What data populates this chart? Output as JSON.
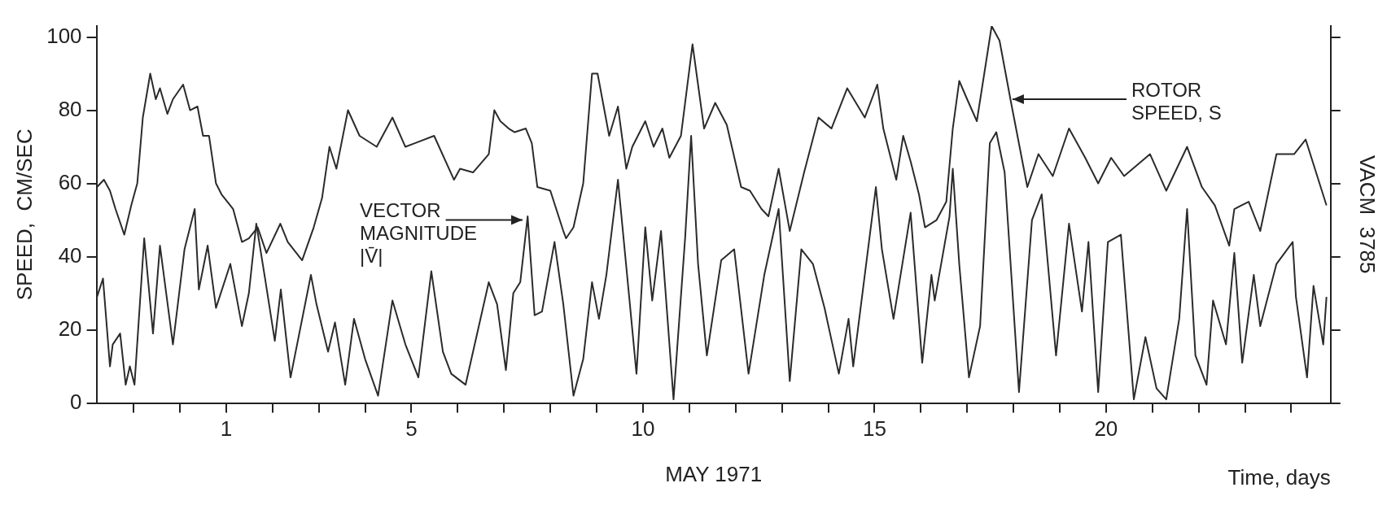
{
  "chart_data": {
    "type": "line",
    "xlabel": "MAY 1971",
    "ylabel": "SPEED,  CM/SEC",
    "y2label": "VACM  3785",
    "xlim": [
      -1.8,
      24.85
    ],
    "xticks": [
      {
        "value": -1,
        "label": null
      },
      {
        "value": 0,
        "label": null
      },
      1,
      {
        "value": 2,
        "label": null
      },
      {
        "value": 3,
        "label": null
      },
      {
        "value": 4,
        "label": null
      },
      5,
      {
        "value": 6,
        "label": null
      },
      {
        "value": 7,
        "label": null
      },
      {
        "value": 8,
        "label": null
      },
      {
        "value": 9,
        "label": null
      },
      10,
      {
        "value": 11,
        "label": null
      },
      {
        "value": 12,
        "label": null
      },
      {
        "value": 13,
        "label": null
      },
      {
        "value": 14,
        "label": null
      },
      15,
      {
        "value": 16,
        "label": null
      },
      {
        "value": 17,
        "label": null
      },
      {
        "value": 18,
        "label": null
      },
      {
        "value": 19,
        "label": null
      },
      20,
      {
        "value": 21,
        "label": null
      },
      {
        "value": 22,
        "label": null
      },
      {
        "value": 23,
        "label": null
      },
      {
        "value": 24,
        "label": null
      }
    ],
    "ylim": [
      0,
      103
    ],
    "yticks": [
      0,
      20,
      40,
      60,
      80,
      100
    ],
    "grid": false,
    "legend": false,
    "series": [
      {
        "color": "#2b2b2b",
        "x": [
          -1.79,
          -1.64,
          -1.51,
          -1.39,
          -1.2,
          -1.05,
          -0.92,
          -0.8,
          -0.64,
          -0.52,
          -0.43,
          -0.27,
          -0.15,
          0.07,
          0.22,
          0.38,
          0.5,
          0.63,
          0.78,
          0.9,
          1.15,
          1.34,
          1.49,
          1.68,
          1.87,
          2.17,
          2.33,
          2.64,
          2.89,
          3.07,
          3.23,
          3.38,
          3.63,
          3.88,
          4.25,
          4.59,
          4.87,
          5.49,
          5.92,
          6.05,
          6.33,
          6.67,
          6.79,
          6.92,
          7.1,
          7.23,
          7.47,
          7.6,
          7.72,
          8.0,
          8.28,
          8.34,
          8.5,
          8.71,
          8.9,
          9.02,
          9.27,
          9.46,
          9.64,
          9.77,
          10.05,
          10.23,
          10.42,
          10.57,
          10.82,
          11.07,
          11.32,
          11.56,
          11.81,
          12.12,
          12.31,
          12.56,
          12.71,
          12.93,
          13.17,
          13.48,
          13.79,
          14.07,
          14.41,
          14.79,
          15.06,
          15.19,
          15.47,
          15.62,
          15.78,
          15.96,
          16.09,
          16.34,
          16.55,
          16.69,
          16.83,
          17.0,
          17.21,
          17.53,
          17.7,
          17.95,
          18.3,
          18.54,
          18.85,
          19.2,
          19.55,
          19.83,
          20.11,
          20.39,
          20.95,
          21.3,
          21.75,
          22.07,
          22.35,
          22.66,
          22.77,
          23.08,
          23.33,
          23.68,
          24.06,
          24.31,
          24.76
        ],
        "values": [
          59,
          61,
          58,
          53,
          46,
          54,
          60,
          78,
          90,
          83,
          86,
          79,
          83,
          87,
          80,
          81,
          73,
          73,
          60,
          57,
          53,
          44,
          45,
          48,
          41,
          49,
          44,
          39,
          48,
          56,
          70,
          64,
          80,
          73,
          70,
          78,
          70,
          73,
          61,
          64,
          63,
          68,
          80,
          77,
          75,
          74,
          75,
          71,
          59,
          58,
          47,
          45,
          48,
          60,
          90,
          90,
          73,
          81,
          64,
          70,
          77,
          70,
          75,
          67,
          73,
          98,
          75,
          82,
          76,
          59,
          58,
          53,
          51,
          64,
          47,
          63,
          78,
          75,
          86,
          78,
          87,
          75,
          61,
          73,
          66,
          57,
          48,
          50,
          55,
          75,
          88,
          83,
          77,
          103,
          99,
          82,
          59,
          68,
          62,
          75,
          67,
          60,
          67,
          62,
          68,
          58,
          70,
          59,
          54,
          43,
          53,
          55,
          47,
          68,
          68,
          72,
          54
        ]
      },
      {
        "color": "#2b2b2b",
        "x": [
          -1.79,
          -1.66,
          -1.51,
          -1.45,
          -1.29,
          -1.17,
          -1.08,
          -0.98,
          -0.77,
          -0.58,
          -0.43,
          -0.15,
          0.1,
          0.32,
          0.41,
          0.6,
          0.78,
          1.09,
          1.34,
          1.49,
          1.65,
          1.84,
          2.05,
          2.18,
          2.39,
          2.83,
          2.95,
          3.2,
          3.35,
          3.57,
          3.76,
          4.0,
          4.28,
          4.59,
          4.87,
          5.15,
          5.43,
          5.68,
          5.86,
          6.17,
          6.67,
          6.85,
          7.04,
          7.2,
          7.35,
          7.51,
          7.66,
          7.82,
          8.09,
          8.28,
          8.5,
          8.71,
          8.9,
          9.05,
          9.21,
          9.46,
          9.71,
          9.86,
          10.05,
          10.2,
          10.39,
          10.66,
          10.91,
          11.04,
          11.19,
          11.38,
          11.69,
          11.97,
          12.28,
          12.62,
          12.93,
          13.17,
          13.42,
          13.67,
          13.92,
          14.23,
          14.44,
          14.54,
          14.91,
          15.03,
          15.16,
          15.41,
          15.78,
          16.03,
          16.23,
          16.3,
          16.62,
          16.69,
          16.83,
          17.04,
          17.28,
          17.49,
          17.63,
          17.81,
          18.12,
          18.4,
          18.61,
          18.92,
          19.2,
          19.48,
          19.62,
          19.83,
          20.04,
          20.32,
          20.6,
          20.85,
          21.09,
          21.3,
          21.58,
          21.75,
          21.93,
          22.17,
          22.31,
          22.59,
          22.77,
          22.94,
          23.19,
          23.33,
          23.68,
          24.03,
          24.1,
          24.34,
          24.48,
          24.69,
          24.76
        ],
        "values": [
          29,
          34,
          10,
          16,
          19,
          5,
          10,
          5,
          45,
          19,
          43,
          16,
          42,
          53,
          31,
          43,
          26,
          38,
          21,
          30,
          49,
          34,
          17,
          31,
          7,
          35,
          27,
          14,
          22,
          5,
          23,
          12,
          2,
          28,
          16,
          7,
          36,
          14,
          8,
          5,
          33,
          27,
          9,
          30,
          33,
          51,
          24,
          25,
          44,
          27,
          2,
          12,
          33,
          23,
          35,
          61,
          28,
          8,
          48,
          28,
          47,
          1,
          45,
          73,
          38,
          13,
          39,
          42,
          8,
          35,
          53,
          6,
          42,
          38,
          26,
          8,
          23,
          10,
          47,
          59,
          42,
          23,
          52,
          11,
          35,
          28,
          51,
          64,
          38,
          7,
          21,
          71,
          74,
          63,
          3,
          50,
          57,
          13,
          49,
          25,
          44,
          3,
          44,
          46,
          1,
          18,
          4,
          1,
          23,
          53,
          13,
          5,
          28,
          16,
          41,
          11,
          35,
          21,
          38,
          44,
          29,
          7,
          32,
          16,
          29
        ]
      }
    ],
    "annotations": [
      {
        "text": "ROTOR SPEED, S",
        "x": 17.91,
        "y": 83
      },
      {
        "text": "VECTOR MAGNITUDE |V̄|",
        "x": 7.47,
        "y": 50
      },
      "Time, days"
    ]
  }
}
